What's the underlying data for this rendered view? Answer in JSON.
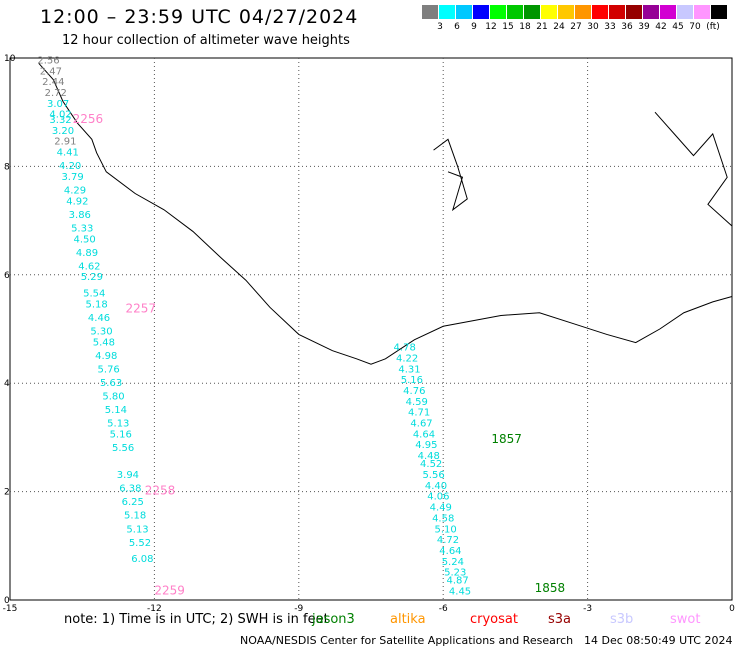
{
  "header": {
    "title": "12:00 – 23:59 UTC 04/27/2024",
    "subtitle": "12 hour collection of altimeter wave heights"
  },
  "colorbar": {
    "colors": [
      "#7f7f7f",
      "#00ffff",
      "#00c8ff",
      "#0000ff",
      "#00ff00",
      "#00c800",
      "#009600",
      "#ffff00",
      "#ffc800",
      "#ff9600",
      "#ff0000",
      "#d20000",
      "#960000",
      "#960096",
      "#d200d2",
      "#c8c8ff",
      "#ff96ff",
      "#000000"
    ],
    "ticks": [
      "3",
      "6",
      "9",
      "12",
      "15",
      "18",
      "21",
      "24",
      "27",
      "30",
      "33",
      "36",
      "39",
      "42",
      "45",
      "70"
    ],
    "unit": "(ft)"
  },
  "map": {
    "x_range": [
      -15,
      0
    ],
    "y_range": [
      0,
      10
    ],
    "x_ticks": [
      -15,
      -12,
      -9,
      -6,
      -3,
      0
    ],
    "y_ticks": [
      0,
      2,
      4,
      6,
      8,
      10
    ],
    "x_tick_labels": [
      "-15",
      "-12",
      "-9",
      "-6",
      "-3",
      "0"
    ],
    "y_tick_labels": [
      "0",
      "2",
      "4",
      "6",
      "8",
      "10"
    ]
  },
  "track_labels": [
    {
      "text": "2256",
      "lon": -13.7,
      "lat": 8.8,
      "color": "#ff80c8"
    },
    {
      "text": "2257",
      "lon": -12.6,
      "lat": 5.3,
      "color": "#ff80c8"
    },
    {
      "text": "2258",
      "lon": -12.2,
      "lat": 1.95,
      "color": "#ff80c8"
    },
    {
      "text": "2259",
      "lon": -12.0,
      "lat": 0.1,
      "color": "#ff80c8"
    },
    {
      "text": "1857",
      "lon": -5.0,
      "lat": 2.9,
      "color": "#008000"
    },
    {
      "text": "1858",
      "lon": -4.1,
      "lat": 0.15,
      "color": "#008000"
    }
  ],
  "wave_heights": [
    {
      "v": "2.56",
      "lon": -14.2,
      "lat": 9.9,
      "color": "#808080"
    },
    {
      "v": "2.47",
      "lon": -14.15,
      "lat": 9.7,
      "color": "#808080"
    },
    {
      "v": "2.44",
      "lon": -14.1,
      "lat": 9.5,
      "color": "#808080"
    },
    {
      "v": "2.72",
      "lon": -14.05,
      "lat": 9.3,
      "color": "#808080"
    },
    {
      "v": "3.07",
      "lon": -14.0,
      "lat": 9.1,
      "color": "#00dcdc"
    },
    {
      "v": "4.02",
      "lon": -13.95,
      "lat": 8.9,
      "color": "#00dcdc"
    },
    {
      "v": "3.32",
      "lon": -13.95,
      "lat": 8.8,
      "color": "#00dcdc"
    },
    {
      "v": "3.20",
      "lon": -13.9,
      "lat": 8.6,
      "color": "#00dcdc"
    },
    {
      "v": "2.91",
      "lon": -13.85,
      "lat": 8.4,
      "color": "#808080"
    },
    {
      "v": "4.41",
      "lon": -13.8,
      "lat": 8.2,
      "color": "#00dcdc"
    },
    {
      "v": "4.20",
      "lon": -13.75,
      "lat": 7.95,
      "color": "#00dcdc"
    },
    {
      "v": "3.79",
      "lon": -13.7,
      "lat": 7.75,
      "color": "#00dcdc"
    },
    {
      "v": "4.29",
      "lon": -13.65,
      "lat": 7.5,
      "color": "#00dcdc"
    },
    {
      "v": "4.92",
      "lon": -13.6,
      "lat": 7.3,
      "color": "#00dcdc"
    },
    {
      "v": "3.86",
      "lon": -13.55,
      "lat": 7.05,
      "color": "#00dcdc"
    },
    {
      "v": "5.33",
      "lon": -13.5,
      "lat": 6.8,
      "color": "#00dcdc"
    },
    {
      "v": "4.50",
      "lon": -13.45,
      "lat": 6.6,
      "color": "#00dcdc"
    },
    {
      "v": "4.89",
      "lon": -13.4,
      "lat": 6.35,
      "color": "#00dcdc"
    },
    {
      "v": "4.62",
      "lon": -13.35,
      "lat": 6.1,
      "color": "#00dcdc"
    },
    {
      "v": "5.29",
      "lon": -13.3,
      "lat": 5.9,
      "color": "#00dcdc"
    },
    {
      "v": "5.54",
      "lon": -13.25,
      "lat": 5.6,
      "color": "#00dcdc"
    },
    {
      "v": "5.18",
      "lon": -13.2,
      "lat": 5.4,
      "color": "#00dcdc"
    },
    {
      "v": "4.46",
      "lon": -13.15,
      "lat": 5.15,
      "color": "#00dcdc"
    },
    {
      "v": "5.30",
      "lon": -13.1,
      "lat": 4.9,
      "color": "#00dcdc"
    },
    {
      "v": "5.48",
      "lon": -13.05,
      "lat": 4.7,
      "color": "#00dcdc"
    },
    {
      "v": "4.98",
      "lon": -13.0,
      "lat": 4.45,
      "color": "#00dcdc"
    },
    {
      "v": "5.76",
      "lon": -12.95,
      "lat": 4.2,
      "color": "#00dcdc"
    },
    {
      "v": "5.63",
      "lon": -12.9,
      "lat": 3.95,
      "color": "#00dcdc"
    },
    {
      "v": "5.80",
      "lon": -12.85,
      "lat": 3.7,
      "color": "#00dcdc"
    },
    {
      "v": "5.14",
      "lon": -12.8,
      "lat": 3.45,
      "color": "#00dcdc"
    },
    {
      "v": "5.13",
      "lon": -12.75,
      "lat": 3.2,
      "color": "#00dcdc"
    },
    {
      "v": "5.16",
      "lon": -12.7,
      "lat": 3.0,
      "color": "#00dcdc"
    },
    {
      "v": "5.56",
      "lon": -12.65,
      "lat": 2.75,
      "color": "#00dcdc"
    },
    {
      "v": "3.94",
      "lon": -12.55,
      "lat": 2.25,
      "color": "#00dcdc"
    },
    {
      "v": "6.38",
      "lon": -12.5,
      "lat": 2.0,
      "color": "#00dcdc"
    },
    {
      "v": "6.25",
      "lon": -12.45,
      "lat": 1.75,
      "color": "#00dcdc"
    },
    {
      "v": "5.18",
      "lon": -12.4,
      "lat": 1.5,
      "color": "#00dcdc"
    },
    {
      "v": "5.13",
      "lon": -12.35,
      "lat": 1.25,
      "color": "#00dcdc"
    },
    {
      "v": "5.52",
      "lon": -12.3,
      "lat": 1.0,
      "color": "#00dcdc"
    },
    {
      "v": "6.08",
      "lon": -12.25,
      "lat": 0.7,
      "color": "#00dcdc"
    },
    {
      "v": "4.78",
      "lon": -6.8,
      "lat": 4.6,
      "color": "#00dcdc"
    },
    {
      "v": "4.22",
      "lon": -6.75,
      "lat": 4.4,
      "color": "#00dcdc"
    },
    {
      "v": "4.31",
      "lon": -6.7,
      "lat": 4.2,
      "color": "#00dcdc"
    },
    {
      "v": "5.16",
      "lon": -6.65,
      "lat": 4.0,
      "color": "#00dcdc"
    },
    {
      "v": "4.76",
      "lon": -6.6,
      "lat": 3.8,
      "color": "#00dcdc"
    },
    {
      "v": "4.59",
      "lon": -6.55,
      "lat": 3.6,
      "color": "#00dcdc"
    },
    {
      "v": "4.71",
      "lon": -6.5,
      "lat": 3.4,
      "color": "#00dcdc"
    },
    {
      "v": "4.67",
      "lon": -6.45,
      "lat": 3.2,
      "color": "#00dcdc"
    },
    {
      "v": "4.64",
      "lon": -6.4,
      "lat": 3.0,
      "color": "#00dcdc"
    },
    {
      "v": "4.95",
      "lon": -6.35,
      "lat": 2.8,
      "color": "#00dcdc"
    },
    {
      "v": "4.48",
      "lon": -6.3,
      "lat": 2.6,
      "color": "#00dcdc"
    },
    {
      "v": "4.52",
      "lon": -6.25,
      "lat": 2.45,
      "color": "#00dcdc"
    },
    {
      "v": "5.56",
      "lon": -6.2,
      "lat": 2.25,
      "color": "#00dcdc"
    },
    {
      "v": "4.40",
      "lon": -6.15,
      "lat": 2.05,
      "color": "#00dcdc"
    },
    {
      "v": "4.06",
      "lon": -6.1,
      "lat": 1.85,
      "color": "#00dcdc"
    },
    {
      "v": "4.49",
      "lon": -6.05,
      "lat": 1.65,
      "color": "#00dcdc"
    },
    {
      "v": "4.58",
      "lon": -6.0,
      "lat": 1.45,
      "color": "#00dcdc"
    },
    {
      "v": "5.10",
      "lon": -5.95,
      "lat": 1.25,
      "color": "#00dcdc"
    },
    {
      "v": "4.72",
      "lon": -5.9,
      "lat": 1.05,
      "color": "#00dcdc"
    },
    {
      "v": "4.64",
      "lon": -5.85,
      "lat": 0.85,
      "color": "#00dcdc"
    },
    {
      "v": "5.24",
      "lon": -5.8,
      "lat": 0.65,
      "color": "#00dcdc"
    },
    {
      "v": "5.23",
      "lon": -5.75,
      "lat": 0.45,
      "color": "#00dcdc"
    },
    {
      "v": "4.87",
      "lon": -5.7,
      "lat": 0.3,
      "color": "#00dcdc"
    },
    {
      "v": "4.45",
      "lon": -5.65,
      "lat": 0.1,
      "color": "#00dcdc"
    }
  ],
  "footer": {
    "note": "note: 1) Time is in UTC; 2) SWH is in feet",
    "legend": [
      {
        "name": "jason3",
        "color": "#008000"
      },
      {
        "name": "altika",
        "color": "#ff9600"
      },
      {
        "name": "cryosat",
        "color": "#ff0000"
      },
      {
        "name": "s3a",
        "color": "#960000"
      },
      {
        "name": "s3b",
        "color": "#c8c8ff"
      },
      {
        "name": "swot",
        "color": "#ff96ff"
      }
    ],
    "credit": "NOAA/NESDIS Center for Satellite Applications and Research",
    "timestamp": "14 Dec 08:50:49 UTC 2024"
  }
}
